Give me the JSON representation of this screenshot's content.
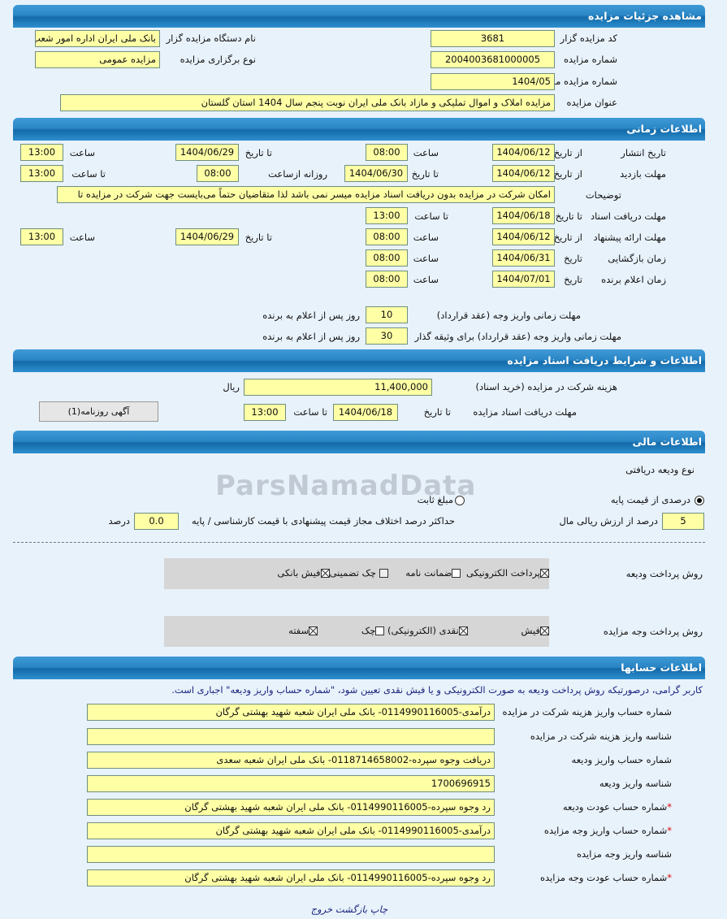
{
  "headers": {
    "details": "مشاهده جزئیات مزایده",
    "time": "اطلاعات زمانی",
    "docs": "اطلاعات و شرایط دریافت اسناد مزایده",
    "finance": "اطلاعات مالی",
    "accounts": "اطلاعات حسابها"
  },
  "details": {
    "org_code_label": "کد مزایده گزار",
    "org_code": "3681",
    "org_name_label": "نام دستگاه مزایده گزار",
    "org_name": "بانک ملی ایران اداره امور شعب",
    "auction_no_label": "شماره مزایده",
    "auction_no": "2004003681000005",
    "type_label": "نوع برگزاری مزایده",
    "type": "مزایده عمومی",
    "ref_no_label": "شماره مزایده مرجع",
    "ref_no": "1404/05",
    "title_label": "عنوان مزایده",
    "title": "مزایده املاک و اموال تملیکی و مازاد بانک ملی ایران نوبت پنجم سال 1404 استان گلستان"
  },
  "time": {
    "from_date": "از تاریخ",
    "to_date": "تا تاریخ",
    "time": "ساعت",
    "to_time": "تا ساعت",
    "date": "تاریخ",
    "daily_from": "روزانه ازساعت",
    "publish": {
      "label": "تاریخ انتشار",
      "from": "1404/06/12",
      "from_time": "08:00",
      "to": "1404/06/29",
      "to_time": "13:00"
    },
    "visit": {
      "label": "مهلت بازدید",
      "from": "1404/06/12",
      "to": "1404/06/30",
      "daily_from": "08:00",
      "to_time": "13:00"
    },
    "notes": {
      "label": "توضیحات",
      "value": "امکان شرکت در مزایده بدون دریافت اسناد مزایده میسر نمی باشد لذا متقاضیان حتماً می‌بایست جهت شرکت در مزایده تا"
    },
    "doc_deadline": {
      "label": "مهلت دریافت اسناد",
      "to": "1404/06/18",
      "to_time": "13:00"
    },
    "offer": {
      "label": "مهلت ارائه پیشنهاد",
      "from": "1404/06/12",
      "from_time": "08:00",
      "to": "1404/06/29",
      "to_time": "13:00"
    },
    "opening": {
      "label": "زمان بازگشایی",
      "date": "1404/06/31",
      "time": "08:00"
    },
    "winner": {
      "label": "زمان اعلام برنده",
      "date": "1404/07/01",
      "time": "08:00"
    },
    "pay1": {
      "label": "مهلت زمانی واریز وجه (عقد قرارداد)",
      "days": "10",
      "suffix": "روز پس از اعلام به برنده"
    },
    "pay2": {
      "label": "مهلت زمانی واریز وجه (عقد قرارداد) برای وثیقه گذار",
      "days": "30",
      "suffix": "روز پس از اعلام به برنده"
    }
  },
  "docs": {
    "fee_label": "هزینه شرکت در مزایده (خرید اسناد)",
    "fee": "11,400,000",
    "currency": "ریال",
    "deadline_label": "مهلت دریافت اسناد مزایده",
    "to_date": "تا تاریخ",
    "date": "1404/06/18",
    "to_time": "تا ساعت",
    "time": "13:00",
    "newspaper_button": "آگهی روزنامه(1)"
  },
  "finance": {
    "deposit_type_label": "نوع ودیعه دریافتی",
    "opt_percent": "درصدی از قیمت پایه",
    "opt_fixed": "مبلغ ثابت",
    "selected": "percent",
    "percent": "5",
    "percent_suffix": "درصد از ارزش ریالی مال",
    "max_diff_label": "حداکثر درصد اختلاف مجاز قیمت پیشنهادی با قیمت کارشناسی / پایه",
    "max_diff": "0.0",
    "max_diff_unit": "درصد",
    "deposit_method_label": "روش پرداخت ودیعه",
    "deposit_methods": [
      {
        "label": "پرداخت الکترونیکی",
        "checked": true
      },
      {
        "label": "ضمانت نامه",
        "checked": false
      },
      {
        "label": "چک تضمینی",
        "checked": false
      },
      {
        "label": "فیش بانکی",
        "checked": true
      }
    ],
    "payment_method_label": "روش پرداخت وجه مزایده",
    "payment_methods": [
      {
        "label": "فیش",
        "checked": true
      },
      {
        "label": "نقدی (الکترونیکی)",
        "checked": true
      },
      {
        "label": "چک",
        "checked": false
      },
      {
        "label": "سفته",
        "checked": true
      }
    ]
  },
  "accounts": {
    "notice": "کاربر گرامی، درصورتیکه روش پرداخت ودیعه به صورت الکترونیکی و یا فیش نقدی تعیین شود، \"شماره حساب واریز ودیعه\" اجباری است.",
    "rows": [
      {
        "label": "شماره حساب واریز هزینه شرکت در مزایده",
        "value": "درآمدی-0114990116005- بانک ملی ایران شعبه شهید بهشتی گرگان",
        "required": false
      },
      {
        "label": "شناسه واریز هزینه شرکت در مزایده",
        "value": "",
        "required": false
      },
      {
        "label": "شماره حساب واریز ودیعه",
        "value": "دریافت وجوه سپرده-0118714658002- بانک ملی ایران شعبه سعدی",
        "required": false
      },
      {
        "label": "شناسه واریز ودیعه",
        "value": "1700696915",
        "required": false
      },
      {
        "label": "شماره حساب عودت ودیعه",
        "value": "رد وجوه سپرده-0114990116005- بانک ملی ایران شعبه شهید بهشتی گرگان",
        "required": true
      },
      {
        "label": "شماره حساب واریز وجه مزایده",
        "value": "درآمدی-0114990116005- بانک ملی ایران شعبه شهید بهشتی گرگان",
        "required": true
      },
      {
        "label": "شناسه واریز وجه مزایده",
        "value": "",
        "required": false
      },
      {
        "label": "شماره حساب عودت وجه مزایده",
        "value": "رد وجوه سپرده-0114990116005- بانک ملی ایران شعبه شهید بهشتی گرگان",
        "required": true
      }
    ],
    "star": "*"
  },
  "footer": {
    "print": "چاپ",
    "back": "بازگشت",
    "exit": "خروج"
  },
  "watermark": "ParsNamadData"
}
